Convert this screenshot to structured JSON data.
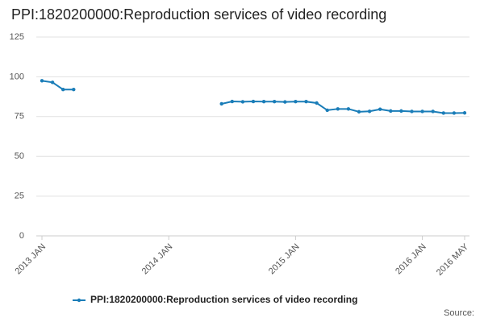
{
  "chart_data": {
    "type": "line",
    "title": "PPI:1820200000:Reproduction services of video recording",
    "source": "Source:",
    "categories": [
      "2013 JAN",
      null,
      null,
      null,
      null,
      null,
      null,
      null,
      null,
      null,
      null,
      null,
      "2014 JAN",
      null,
      null,
      null,
      null,
      null,
      null,
      null,
      null,
      null,
      null,
      null,
      "2015 JAN",
      null,
      null,
      null,
      null,
      null,
      null,
      null,
      null,
      null,
      null,
      null,
      "2016 JAN",
      null,
      null,
      null,
      "2016 MAY"
    ],
    "series": [
      {
        "name": "PPI:1820200000:Reproduction services of video recording",
        "color": "#1a7db8",
        "values": [
          97.5,
          96.5,
          92,
          92,
          null,
          null,
          null,
          null,
          null,
          null,
          null,
          null,
          null,
          null,
          null,
          null,
          null,
          83,
          84.5,
          84.3,
          84.5,
          84.4,
          84.4,
          84.2,
          84.4,
          84.4,
          83.5,
          79,
          79.8,
          79.8,
          78,
          78.3,
          79.6,
          78.5,
          78.5,
          78.2,
          78.2,
          78.2,
          77.2,
          77.2,
          77.3
        ]
      }
    ],
    "ylim": [
      0,
      125
    ],
    "yticks": [
      0,
      25,
      50,
      75,
      100,
      125
    ],
    "grid": true,
    "legend": "bottom"
  }
}
